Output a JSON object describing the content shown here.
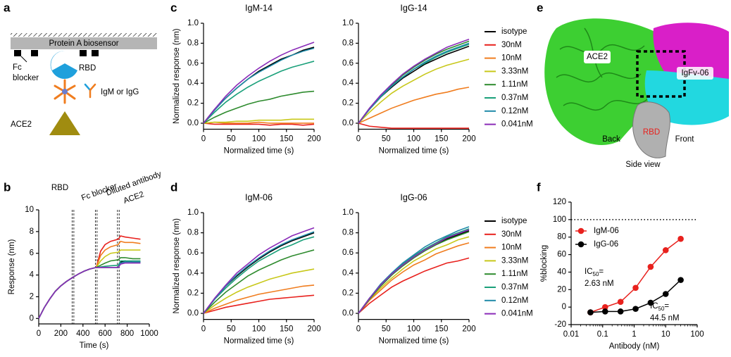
{
  "panel_labels": [
    "a",
    "b",
    "c",
    "d",
    "e",
    "f"
  ],
  "diagram": {
    "sensor": "Protein A biosensor",
    "fc_blocker": [
      "Fc",
      "blocker"
    ],
    "rbd": "RBD",
    "antibody": "IgM or IgG",
    "ace2": "ACE2"
  },
  "structure": {
    "ace2": "ACE2",
    "igfv": "IgFv-06",
    "rbd": "RBD",
    "back": "Back",
    "front": "Front",
    "view": "Side view"
  },
  "chart_data": [
    {
      "type": "line",
      "xlabel": "Time (s)",
      "ylabel": "Response (nm)",
      "x": [
        0,
        50,
        100,
        150,
        200,
        250,
        310,
        360,
        410,
        460,
        520,
        560,
        600,
        650,
        720,
        740,
        780,
        850,
        920
      ],
      "xlim": [
        0,
        1000
      ],
      "xticks": [
        0,
        200,
        400,
        600,
        800,
        1000
      ],
      "ylim": [
        -0.5,
        10
      ],
      "yticks": [
        0,
        2,
        4,
        6,
        8,
        10
      ],
      "vlines": [
        310,
        520,
        720
      ],
      "phase_labels": [
        "RBD",
        "Fc blocker",
        "Diluted antibody",
        "ACE2"
      ],
      "series": [
        {
          "color": "#000000",
          "values": [
            0,
            1.0,
            1.8,
            2.5,
            3.0,
            3.4,
            3.8,
            4.1,
            4.35,
            4.55,
            4.7,
            4.7,
            4.7,
            4.7,
            4.7,
            5.2,
            5.3,
            5.2,
            5.2
          ]
        },
        {
          "color": "#e8211d",
          "values": [
            0,
            1.0,
            1.8,
            2.5,
            3.0,
            3.4,
            3.8,
            4.1,
            4.35,
            4.55,
            4.7,
            6.2,
            6.8,
            7.1,
            7.3,
            7.6,
            7.5,
            7.4,
            7.3
          ]
        },
        {
          "color": "#f07d1f",
          "values": [
            0,
            1.0,
            1.8,
            2.5,
            3.0,
            3.4,
            3.8,
            4.1,
            4.35,
            4.55,
            4.7,
            5.8,
            6.3,
            6.6,
            6.8,
            7.1,
            7.0,
            7.0,
            6.9
          ]
        },
        {
          "color": "#c8c81a",
          "values": [
            0,
            1.0,
            1.8,
            2.5,
            3.0,
            3.4,
            3.8,
            4.1,
            4.35,
            4.55,
            4.7,
            5.3,
            5.7,
            6.0,
            6.1,
            6.3,
            6.3,
            6.3,
            6.3
          ]
        },
        {
          "color": "#2e8b2e",
          "values": [
            0,
            1.0,
            1.8,
            2.5,
            3.0,
            3.4,
            3.8,
            4.1,
            4.35,
            4.55,
            4.7,
            4.9,
            5.1,
            5.3,
            5.4,
            5.6,
            5.6,
            5.5,
            5.5
          ]
        },
        {
          "color": "#1aa07a",
          "values": [
            0,
            1.0,
            1.8,
            2.5,
            3.0,
            3.4,
            3.8,
            4.1,
            4.35,
            4.55,
            4.7,
            4.75,
            4.8,
            4.85,
            4.9,
            5.3,
            5.3,
            5.3,
            5.3
          ]
        },
        {
          "color": "#1f8aa8",
          "values": [
            0,
            1.0,
            1.8,
            2.5,
            3.0,
            3.4,
            3.8,
            4.1,
            4.35,
            4.55,
            4.7,
            4.7,
            4.7,
            4.7,
            4.7,
            5.1,
            5.2,
            5.2,
            5.2
          ]
        },
        {
          "color": "#8a2bb8",
          "values": [
            0,
            1.0,
            1.8,
            2.5,
            3.0,
            3.4,
            3.8,
            4.1,
            4.35,
            4.55,
            4.7,
            4.7,
            4.7,
            4.7,
            4.7,
            5.0,
            5.1,
            5.1,
            5.1
          ]
        }
      ]
    },
    {
      "type": "line",
      "title": "IgM-14",
      "xlabel": "Normalized time (s)",
      "ylabel": "Normalized response (nm)",
      "x": [
        0,
        20,
        40,
        60,
        80,
        100,
        120,
        140,
        160,
        180,
        200
      ],
      "xlim": [
        0,
        200
      ],
      "xticks": [
        0,
        50,
        100,
        150,
        200
      ],
      "ylim": [
        -0.06,
        1
      ],
      "yticks": [
        {
          "value": 0,
          "label": "0.0"
        },
        {
          "value": 0.2,
          "label": "0.2"
        },
        {
          "value": 0.4,
          "label": "0.4"
        },
        {
          "value": 0.6,
          "label": "0.6"
        },
        {
          "value": 0.8,
          "label": "0.8"
        },
        {
          "value": 1,
          "label": "1.0"
        }
      ],
      "series": [
        {
          "color": "#000000",
          "values": [
            0,
            0.14,
            0.25,
            0.35,
            0.44,
            0.52,
            0.58,
            0.64,
            0.68,
            0.73,
            0.76
          ]
        },
        {
          "color": "#e8211d",
          "values": [
            0,
            -0.01,
            -0.01,
            -0.01,
            -0.01,
            -0.01,
            -0.02,
            -0.01,
            -0.01,
            -0.02,
            -0.01
          ]
        },
        {
          "color": "#f07d1f",
          "values": [
            0,
            0.01,
            0,
            0,
            0,
            0.01,
            0,
            0,
            0,
            0,
            0
          ]
        },
        {
          "color": "#c8c81a",
          "values": [
            0,
            0.01,
            0.01,
            0.02,
            0.02,
            0.03,
            0.03,
            0.03,
            0.04,
            0.04,
            0.04
          ]
        },
        {
          "color": "#2e8b2e",
          "values": [
            0,
            0.06,
            0.11,
            0.15,
            0.19,
            0.22,
            0.24,
            0.27,
            0.29,
            0.31,
            0.32
          ]
        },
        {
          "color": "#1aa07a",
          "values": [
            0,
            0.11,
            0.21,
            0.29,
            0.36,
            0.42,
            0.47,
            0.52,
            0.56,
            0.59,
            0.62
          ]
        },
        {
          "color": "#1f8aa8",
          "values": [
            0,
            0.13,
            0.25,
            0.35,
            0.44,
            0.51,
            0.57,
            0.63,
            0.68,
            0.72,
            0.75
          ]
        },
        {
          "color": "#8a2bb8",
          "values": [
            0,
            0.14,
            0.27,
            0.38,
            0.47,
            0.55,
            0.62,
            0.68,
            0.73,
            0.77,
            0.81
          ]
        }
      ]
    },
    {
      "type": "line",
      "title": "IgG-14",
      "xlabel": "Normalized time (s)",
      "x": [
        0,
        20,
        40,
        60,
        80,
        100,
        120,
        140,
        160,
        180,
        200
      ],
      "xlim": [
        0,
        200
      ],
      "xticks": [
        0,
        50,
        100,
        150,
        200
      ],
      "ylim": [
        -0.06,
        1
      ],
      "yticks": [
        {
          "value": 0,
          "label": "0.0"
        },
        {
          "value": 0.2,
          "label": "0.2"
        },
        {
          "value": 0.4,
          "label": "0.4"
        },
        {
          "value": 0.6,
          "label": "0.6"
        },
        {
          "value": 0.8,
          "label": "0.8"
        },
        {
          "value": 1,
          "label": "1.0"
        }
      ],
      "series": [
        {
          "name": "isotype",
          "color": "#000000",
          "values": [
            0,
            0.14,
            0.26,
            0.36,
            0.45,
            0.52,
            0.59,
            0.64,
            0.69,
            0.73,
            0.77
          ]
        },
        {
          "name": "30nM",
          "color": "#e8211d",
          "values": [
            0,
            -0.03,
            -0.04,
            -0.05,
            -0.05,
            -0.05,
            -0.05,
            -0.05,
            -0.05,
            -0.05,
            -0.05
          ]
        },
        {
          "name": "10nM",
          "color": "#f07d1f",
          "values": [
            0,
            0.05,
            0.1,
            0.15,
            0.19,
            0.23,
            0.26,
            0.29,
            0.31,
            0.34,
            0.36
          ]
        },
        {
          "name": "3.33nM",
          "color": "#c8c81a",
          "values": [
            0,
            0.11,
            0.21,
            0.3,
            0.37,
            0.43,
            0.49,
            0.54,
            0.58,
            0.61,
            0.64
          ]
        },
        {
          "name": "1.11nM",
          "color": "#2e8b2e",
          "values": [
            0,
            0.15,
            0.27,
            0.38,
            0.48,
            0.56,
            0.63,
            0.69,
            0.74,
            0.78,
            0.82
          ]
        },
        {
          "name": "0.37nM",
          "color": "#1aa07a",
          "values": [
            0,
            0.14,
            0.26,
            0.37,
            0.46,
            0.54,
            0.6,
            0.66,
            0.71,
            0.75,
            0.79
          ]
        },
        {
          "name": "0.12nM",
          "color": "#1f8aa8",
          "values": [
            0,
            0.14,
            0.27,
            0.37,
            0.46,
            0.54,
            0.61,
            0.67,
            0.72,
            0.76,
            0.8
          ]
        },
        {
          "name": "0.041nM",
          "color": "#8a2bb8",
          "values": [
            0,
            0.15,
            0.28,
            0.39,
            0.49,
            0.57,
            0.64,
            0.7,
            0.76,
            0.8,
            0.84
          ]
        }
      ]
    },
    {
      "type": "line",
      "title": "IgM-06",
      "xlabel": "Normalized time (s)",
      "ylabel": "Normalized response (nm)",
      "x": [
        0,
        20,
        40,
        60,
        80,
        100,
        120,
        140,
        160,
        180,
        200
      ],
      "xlim": [
        0,
        200
      ],
      "xticks": [
        0,
        50,
        100,
        150,
        200
      ],
      "ylim": [
        -0.06,
        1
      ],
      "yticks": [
        {
          "value": 0,
          "label": "0.0"
        },
        {
          "value": 0.2,
          "label": "0.2"
        },
        {
          "value": 0.4,
          "label": "0.4"
        },
        {
          "value": 0.6,
          "label": "0.6"
        },
        {
          "value": 0.8,
          "label": "0.8"
        },
        {
          "value": 1,
          "label": "1.0"
        }
      ],
      "series": [
        {
          "color": "#000000",
          "values": [
            0,
            0.14,
            0.27,
            0.37,
            0.46,
            0.54,
            0.61,
            0.67,
            0.72,
            0.76,
            0.8
          ]
        },
        {
          "color": "#e8211d",
          "values": [
            0,
            0.03,
            0.06,
            0.08,
            0.1,
            0.12,
            0.14,
            0.15,
            0.16,
            0.17,
            0.18
          ]
        },
        {
          "color": "#f07d1f",
          "values": [
            0,
            0.05,
            0.09,
            0.13,
            0.16,
            0.19,
            0.21,
            0.23,
            0.25,
            0.27,
            0.28
          ]
        },
        {
          "color": "#c8c81a",
          "values": [
            0,
            0.08,
            0.15,
            0.21,
            0.26,
            0.3,
            0.34,
            0.37,
            0.4,
            0.42,
            0.44
          ]
        },
        {
          "color": "#2e8b2e",
          "values": [
            0,
            0.11,
            0.21,
            0.29,
            0.37,
            0.43,
            0.48,
            0.53,
            0.57,
            0.6,
            0.63
          ]
        },
        {
          "color": "#1aa07a",
          "values": [
            0,
            0.14,
            0.25,
            0.35,
            0.44,
            0.52,
            0.58,
            0.64,
            0.68,
            0.73,
            0.76
          ]
        },
        {
          "color": "#1f8aa8",
          "values": [
            0,
            0.14,
            0.27,
            0.38,
            0.47,
            0.55,
            0.62,
            0.68,
            0.73,
            0.77,
            0.81
          ]
        },
        {
          "color": "#8a2bb8",
          "values": [
            0,
            0.15,
            0.28,
            0.4,
            0.49,
            0.58,
            0.65,
            0.71,
            0.77,
            0.81,
            0.85
          ]
        }
      ]
    },
    {
      "type": "line",
      "title": "IgG-06",
      "xlabel": "Normalized time (s)",
      "x": [
        0,
        20,
        40,
        60,
        80,
        100,
        120,
        140,
        160,
        180,
        200
      ],
      "xlim": [
        0,
        200
      ],
      "xticks": [
        0,
        50,
        100,
        150,
        200
      ],
      "ylim": [
        -0.06,
        1
      ],
      "yticks": [
        {
          "value": 0,
          "label": "0.0"
        },
        {
          "value": 0.2,
          "label": "0.2"
        },
        {
          "value": 0.4,
          "label": "0.4"
        },
        {
          "value": 0.6,
          "label": "0.6"
        },
        {
          "value": 0.8,
          "label": "0.8"
        },
        {
          "value": 1,
          "label": "1.0"
        }
      ],
      "series": [
        {
          "name": "isotype",
          "color": "#000000",
          "values": [
            0,
            0.15,
            0.27,
            0.38,
            0.48,
            0.56,
            0.63,
            0.69,
            0.74,
            0.78,
            0.82
          ]
        },
        {
          "name": "30nM",
          "color": "#e8211d",
          "values": [
            0,
            0.1,
            0.18,
            0.26,
            0.32,
            0.37,
            0.42,
            0.46,
            0.5,
            0.52,
            0.55
          ]
        },
        {
          "name": "10nM",
          "color": "#f07d1f",
          "values": [
            0,
            0.13,
            0.23,
            0.33,
            0.41,
            0.48,
            0.53,
            0.59,
            0.63,
            0.67,
            0.7
          ]
        },
        {
          "name": "3.33nM",
          "color": "#c8c81a",
          "values": [
            0,
            0.14,
            0.25,
            0.35,
            0.44,
            0.52,
            0.58,
            0.64,
            0.68,
            0.73,
            0.76
          ]
        },
        {
          "name": "1.11nM",
          "color": "#2e8b2e",
          "values": [
            0,
            0.14,
            0.27,
            0.38,
            0.47,
            0.55,
            0.62,
            0.68,
            0.73,
            0.77,
            0.81
          ]
        },
        {
          "name": "0.37nM",
          "color": "#1aa07a",
          "values": [
            0,
            0.15,
            0.28,
            0.39,
            0.49,
            0.57,
            0.64,
            0.7,
            0.76,
            0.8,
            0.84
          ]
        },
        {
          "name": "0.12nM",
          "color": "#1f8aa8",
          "values": [
            0,
            0.15,
            0.29,
            0.4,
            0.5,
            0.58,
            0.66,
            0.72,
            0.77,
            0.82,
            0.86
          ]
        },
        {
          "name": "0.041nM",
          "color": "#8a2bb8",
          "values": [
            0,
            0.15,
            0.28,
            0.39,
            0.48,
            0.56,
            0.63,
            0.69,
            0.75,
            0.79,
            0.83
          ]
        }
      ]
    },
    {
      "type": "scatter",
      "xlabel": "Antibody (nM)",
      "ylabel": "%blocking",
      "xscale": "log",
      "x": [
        0.041,
        0.12,
        0.37,
        1.11,
        3.33,
        10,
        30
      ],
      "xlim": [
        0.01,
        100
      ],
      "xticks": [
        0.01,
        0.1,
        1,
        10,
        100
      ],
      "ylim": [
        -20,
        120
      ],
      "yticks": [
        -20,
        0,
        20,
        40,
        60,
        80,
        100,
        120
      ],
      "hline": 100,
      "series": [
        {
          "name": "IgM-06",
          "color": "#e8211d",
          "values": [
            -6,
            0,
            6,
            22,
            46,
            65,
            78
          ]
        },
        {
          "name": "IgG-06",
          "color": "#000000",
          "values": [
            -6,
            -5,
            -5,
            -2,
            5,
            15,
            31
          ]
        }
      ],
      "annotations": [
        {
          "text": "IC",
          "sub": "50",
          "eq": "=",
          "value": "2.63 nM"
        },
        {
          "text": "IC",
          "sub": "50",
          "eq": "=",
          "value": "44.5 nM"
        }
      ]
    }
  ]
}
